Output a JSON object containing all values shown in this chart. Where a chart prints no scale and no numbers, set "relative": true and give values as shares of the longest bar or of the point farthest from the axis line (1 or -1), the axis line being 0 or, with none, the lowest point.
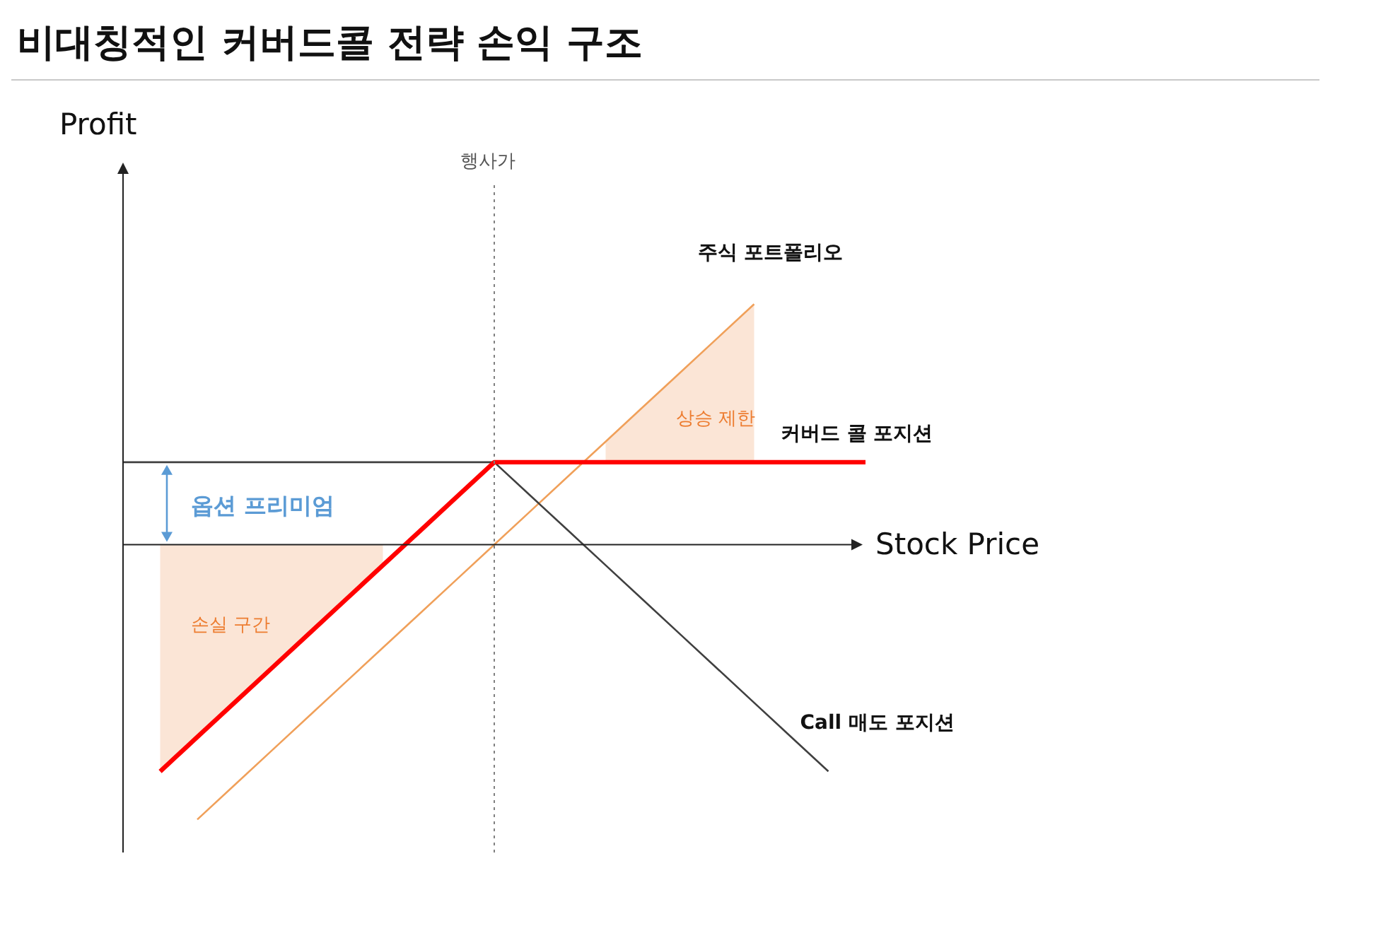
{
  "chart_data": {
    "type": "line",
    "title": "비대칭적인 커버드콜 전략 손익 구조",
    "xlabel": "Stock Price",
    "relative": true,
    "marker": "none",
    "categories": [
      null,
      null,
      null,
      null,
      null,
      null,
      null,
      null,
      null,
      null,
      null,
      null,
      null,
      null,
      null,
      null,
      null,
      null,
      null,
      null,
      null
    ],
    "series": [
      {
        "type": "area",
        "color": "#fbe5d6",
        "values": [
          null,
          -0.825,
          -0.7,
          -0.575,
          -0.45,
          -0.325,
          -0.2,
          -0.075,
          null,
          null,
          null,
          null,
          null,
          null,
          null,
          null,
          null,
          null,
          null,
          null,
          null
        ]
      },
      {
        "type": "area",
        "color": "#fbe5d6",
        "values": [
          null,
          null,
          null,
          null,
          null,
          null,
          null,
          null,
          null,
          null,
          null,
          null,
          null,
          0.375,
          0.5,
          0.625,
          0.75,
          0.875,
          null,
          null,
          null
        ]
      },
      {
        "name": "주식 포트폴리오",
        "color": "#f0a05a",
        "values": [
          null,
          null,
          -1,
          -0.875,
          -0.75,
          -0.625,
          -0.5,
          -0.375,
          -0.25,
          -0.125,
          0,
          0.125,
          0.25,
          0.375,
          0.5,
          0.625,
          0.75,
          0.875,
          null,
          null,
          null
        ]
      },
      {
        "name": "Call 매도 포지션",
        "color": "#404040",
        "values": [
          0.3,
          0.3,
          0.3,
          0.3,
          0.3,
          0.3,
          0.3,
          0.3,
          0.3,
          0.3,
          0.3,
          0.175,
          0.05,
          -0.075,
          -0.2,
          -0.325,
          -0.45,
          -0.575,
          -0.7,
          -0.825,
          null
        ]
      },
      {
        "name": "커버드 콜 포지션",
        "color": "#ff0000",
        "values": [
          null,
          -0.825,
          -0.7,
          -0.575,
          -0.45,
          -0.325,
          -0.2,
          -0.075,
          0.05,
          0.175,
          0.3,
          0.3,
          0.3,
          0.3,
          0.3,
          0.3,
          0.3,
          0.3,
          0.3,
          0.3,
          0.3
        ]
      }
    ],
    "annotations": [
      "옵션 프리미엄",
      "손실 구간",
      "상승 제한",
      "행사가",
      "Profit"
    ]
  }
}
